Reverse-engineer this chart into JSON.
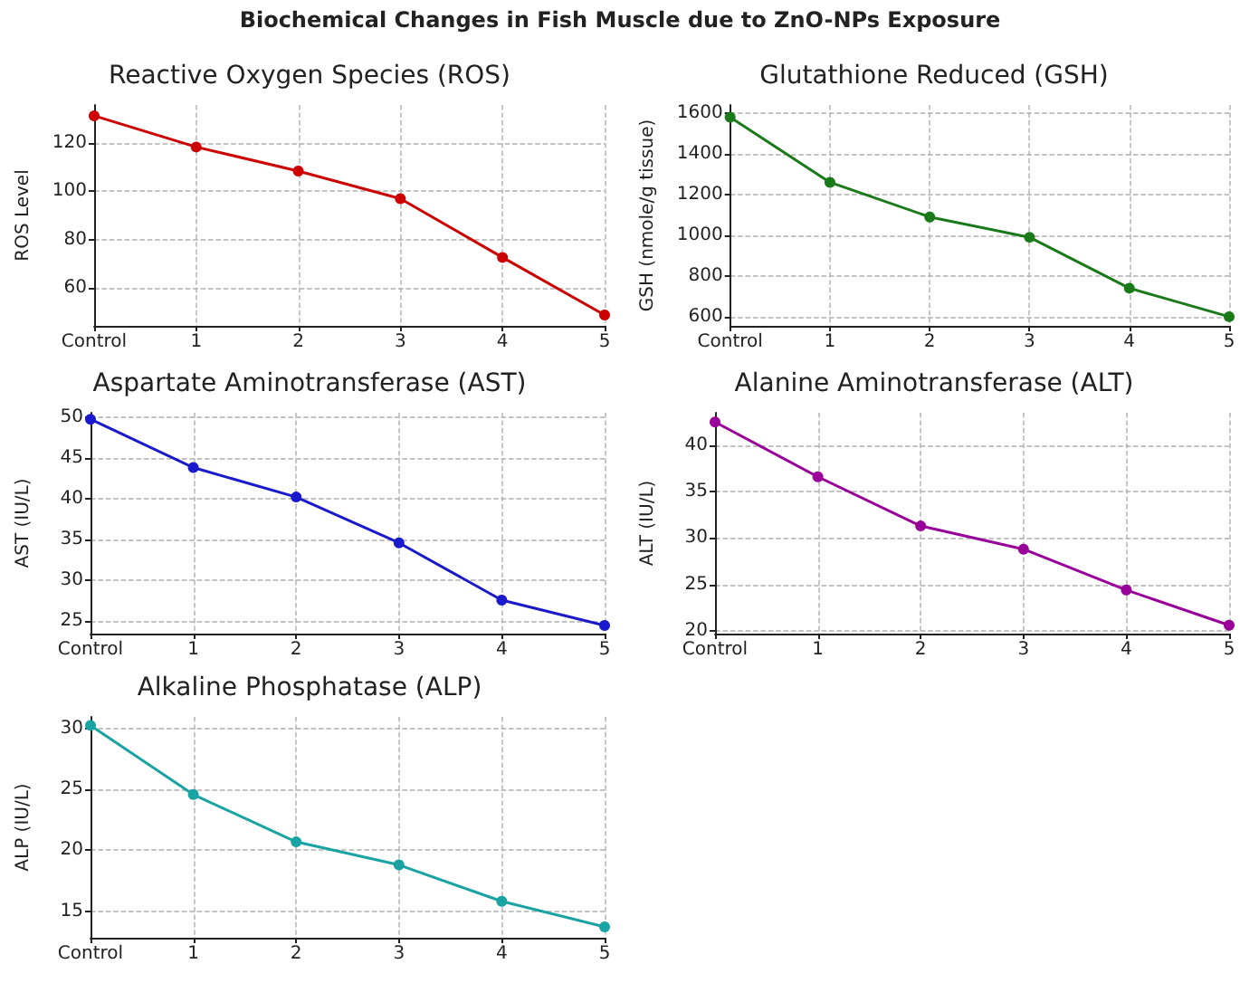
{
  "chart_data": [
    {
      "type": "line",
      "title": "Reactive Oxygen Species (ROS)",
      "ylabel": "ROS Level",
      "categories": [
        "Control",
        "1",
        "2",
        "3",
        "4",
        "5"
      ],
      "values": [
        131.5,
        118.5,
        108.5,
        97,
        72.5,
        48.5
      ],
      "color": "#cc0000",
      "ylim": [
        44,
        136
      ],
      "yticks": [
        60,
        80,
        100,
        120
      ],
      "grid": true,
      "marker": "circle",
      "annotations": [
        "Biochemical Changes in Fish Muscle due to ZnO-NPs Exposure"
      ]
    },
    {
      "type": "line",
      "title": "Glutathione Reduced (GSH)",
      "ylabel": "GSH (nmole/g tissue)",
      "categories": [
        "Control",
        "1",
        "2",
        "3",
        "4",
        "5"
      ],
      "values": [
        1580,
        1260,
        1090,
        990,
        740,
        600
      ],
      "color": "#1a7a1a",
      "ylim": [
        555,
        1640
      ],
      "yticks": [
        600,
        800,
        1000,
        1200,
        1400,
        1600
      ],
      "grid": true,
      "marker": "circle"
    },
    {
      "type": "line",
      "title": "Aspartate Aminotransferase (AST)",
      "ylabel": "AST (IU/L)",
      "categories": [
        "Control",
        "1",
        "2",
        "3",
        "4",
        "5"
      ],
      "values": [
        49.7,
        43.8,
        40.2,
        34.6,
        27.6,
        24.5
      ],
      "color": "#1a1acc",
      "ylim": [
        23.5,
        50.5
      ],
      "yticks": [
        25,
        30,
        35,
        40,
        45,
        50
      ],
      "grid": true,
      "marker": "circle"
    },
    {
      "type": "line",
      "title": "Alanine Aminotransferase (ALT)",
      "ylabel": "ALT (IU/L)",
      "categories": [
        "Control",
        "1",
        "2",
        "3",
        "4",
        "5"
      ],
      "values": [
        42.5,
        36.6,
        31.3,
        28.8,
        24.4,
        20.6
      ],
      "color": "#990099",
      "ylim": [
        19.7,
        43.5
      ],
      "yticks": [
        20,
        25,
        30,
        35,
        40
      ],
      "grid": true,
      "marker": "circle"
    },
    {
      "type": "line",
      "title": "Alkaline Phosphatase (ALP)",
      "ylabel": "ALP (IU/L)",
      "categories": [
        "Control",
        "1",
        "2",
        "3",
        "4",
        "5"
      ],
      "values": [
        30.3,
        24.6,
        20.7,
        18.8,
        15.8,
        13.7
      ],
      "color": "#1aa3a3",
      "ylim": [
        12.8,
        31
      ],
      "yticks": [
        15,
        20,
        25,
        30
      ],
      "grid": true,
      "marker": "circle"
    }
  ]
}
